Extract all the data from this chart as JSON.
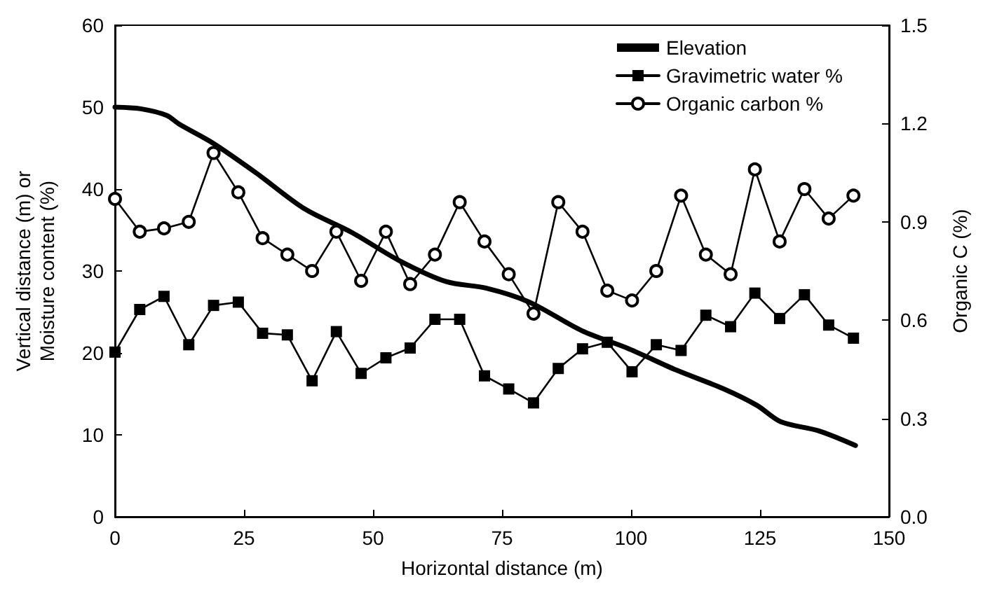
{
  "chart_data": {
    "type": "line",
    "xlabel": "Horizontal distance (m)",
    "ylabel": "Vertical distance (m) or\nMoisture content (%)",
    "y2label": "Organic C (%)",
    "xlim": [
      0,
      150
    ],
    "xticks": [
      0,
      25,
      50,
      75,
      100,
      125,
      150
    ],
    "ylim": [
      0,
      60
    ],
    "yticks": [
      0,
      10,
      20,
      30,
      40,
      50,
      60
    ],
    "y2lim": [
      0,
      1.5
    ],
    "y2ticks": [
      {
        "value": 0,
        "label": "0.0"
      },
      0.3,
      0.6,
      0.9,
      1.2,
      1.5
    ],
    "grid": false,
    "legend": "top right",
    "line_style": "solid",
    "series": [
      {
        "name": "Elevation",
        "color": "#000000",
        "marker": "none",
        "x": [
          0,
          5,
          10,
          12.5,
          19,
          27.5,
          36.7,
          45.9,
          55,
          64.2,
          72,
          80.3,
          90.5,
          99.6,
          108.8,
          118,
          124.4,
          129,
          136.3,
          143.5
        ],
        "values": [
          50,
          49.8,
          49,
          47.9,
          45.6,
          41.9,
          37.6,
          34.7,
          31.3,
          28.7,
          27.9,
          26.2,
          22.7,
          20.5,
          17.9,
          15.6,
          13.6,
          11.6,
          10.5,
          8.7
        ]
      },
      {
        "name": "Gravimetric water %",
        "color": "#000000",
        "marker": "square",
        "x": [
          0,
          4.8,
          9.5,
          14.3,
          19.1,
          23.9,
          28.6,
          33.4,
          38.2,
          42.9,
          47.7,
          52.5,
          57.2,
          62,
          66.8,
          71.6,
          76.3,
          81.1,
          85.9,
          90.6,
          95.4,
          100.2,
          104.9,
          109.7,
          114.5,
          119.3,
          124,
          128.8,
          133.6,
          138.3,
          143.1
        ],
        "values": [
          20.1,
          25.3,
          26.9,
          21,
          25.8,
          26.2,
          22.4,
          22.2,
          16.6,
          22.6,
          17.5,
          19.4,
          20.6,
          24.1,
          24.1,
          17.2,
          15.6,
          13.9,
          18.1,
          20.5,
          21.3,
          17.7,
          21,
          20.3,
          24.6,
          23.2,
          27.3,
          24.2,
          27.1,
          23.4,
          21.8
        ]
      },
      {
        "name": "Organic carbon %",
        "color": "#000000",
        "marker": "circle",
        "axis": "y2",
        "x": [
          0,
          4.8,
          9.5,
          14.3,
          19.1,
          23.9,
          28.6,
          33.4,
          38.2,
          42.9,
          47.7,
          52.5,
          57.2,
          62,
          66.8,
          71.6,
          76.3,
          81.1,
          85.9,
          90.6,
          95.4,
          100.2,
          104.9,
          109.7,
          114.5,
          119.3,
          124,
          128.8,
          133.6,
          138.3,
          143.1
        ],
        "values": [
          0.97,
          0.87,
          0.88,
          0.9,
          1.11,
          0.99,
          0.85,
          0.8,
          0.75,
          0.87,
          0.72,
          0.87,
          0.71,
          0.8,
          0.96,
          0.84,
          0.74,
          0.62,
          0.96,
          0.87,
          0.69,
          0.66,
          0.75,
          0.98,
          0.8,
          0.74,
          1.06,
          0.84,
          1,
          0.91,
          0.98
        ]
      }
    ]
  }
}
